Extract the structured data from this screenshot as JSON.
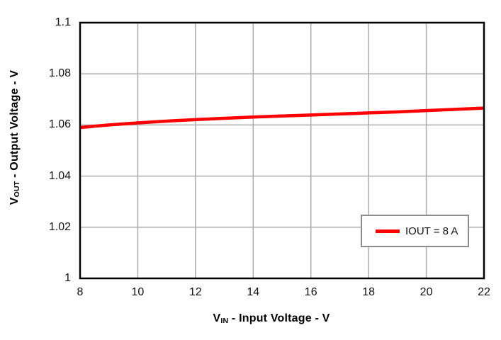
{
  "chart_data": {
    "type": "line",
    "title": "",
    "xlabel": {
      "prefix": "V",
      "sub": "IN",
      "rest": " - Input Voltage - V"
    },
    "ylabel": {
      "prefix": "V",
      "sub": "OUT",
      "rest": " - Output Voltage - V"
    },
    "xlim": [
      8,
      22
    ],
    "ylim": [
      1,
      1.1
    ],
    "x_ticks": [
      8,
      10,
      12,
      14,
      16,
      18,
      20,
      22
    ],
    "x_tick_labels": [
      "8",
      "10",
      "12",
      "14",
      "16",
      "18",
      "20",
      "22"
    ],
    "y_ticks": [
      1,
      1.02,
      1.04,
      1.06,
      1.08,
      1.1
    ],
    "y_tick_labels": [
      "1",
      "1.02",
      "1.04",
      "1.06",
      "1.08",
      "1.1"
    ],
    "grid": true,
    "legend": {
      "position": "lower right",
      "entries": [
        {
          "label": "IOUT = 8 A",
          "color": "#ff0000"
        }
      ]
    },
    "series": [
      {
        "name": "IOUT = 8 A",
        "color": "#ff0000",
        "x": [
          8,
          9,
          10,
          11,
          12,
          13,
          14,
          15,
          16,
          17,
          18,
          19,
          20,
          21,
          22
        ],
        "y": [
          1.059,
          1.06,
          1.0608,
          1.0615,
          1.0621,
          1.0626,
          1.0631,
          1.0635,
          1.0639,
          1.0643,
          1.0647,
          1.0651,
          1.0656,
          1.0661,
          1.0666
        ]
      }
    ],
    "colors": {
      "line": "#ff0000",
      "grid": "#ababab",
      "frame": "#000000",
      "legend_border": "#8c8c8c",
      "text": "#111111"
    }
  }
}
